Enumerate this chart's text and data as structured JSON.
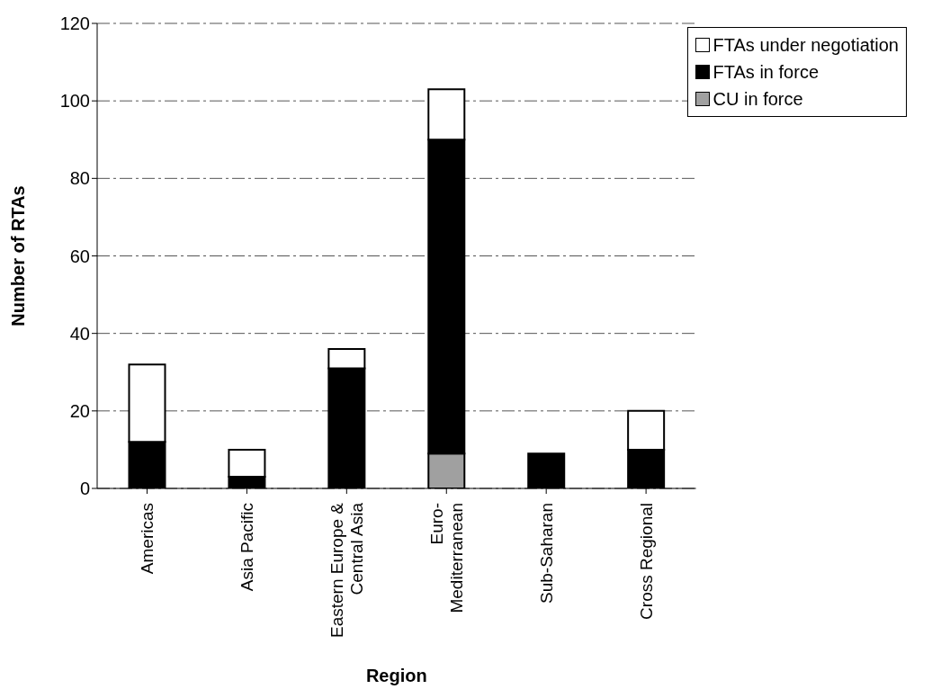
{
  "chart_data": {
    "type": "bar",
    "stacked": true,
    "xlabel": "Region",
    "ylabel": "Number of RTAs",
    "categories": [
      "Americas",
      "Asia Pacific",
      "Eastern Europe & Central Asia",
      "Euro-Mediterranean",
      "Sub-Saharan",
      "Cross Regional"
    ],
    "series": [
      {
        "name": "CU in force",
        "color": "#a0a0a0",
        "values": [
          0,
          0,
          0,
          9,
          0,
          0
        ]
      },
      {
        "name": "FTAs in force",
        "color": "#000000",
        "values": [
          12,
          3,
          31,
          81,
          9,
          10
        ]
      },
      {
        "name": "FTAs under negotiation",
        "color": "#ffffff",
        "values": [
          20,
          7,
          5,
          13,
          0,
          10
        ]
      }
    ],
    "ylim": [
      0,
      120
    ],
    "yticks": [
      0,
      20,
      40,
      60,
      80,
      100,
      120
    ],
    "grid": "y",
    "legend": "top right"
  }
}
